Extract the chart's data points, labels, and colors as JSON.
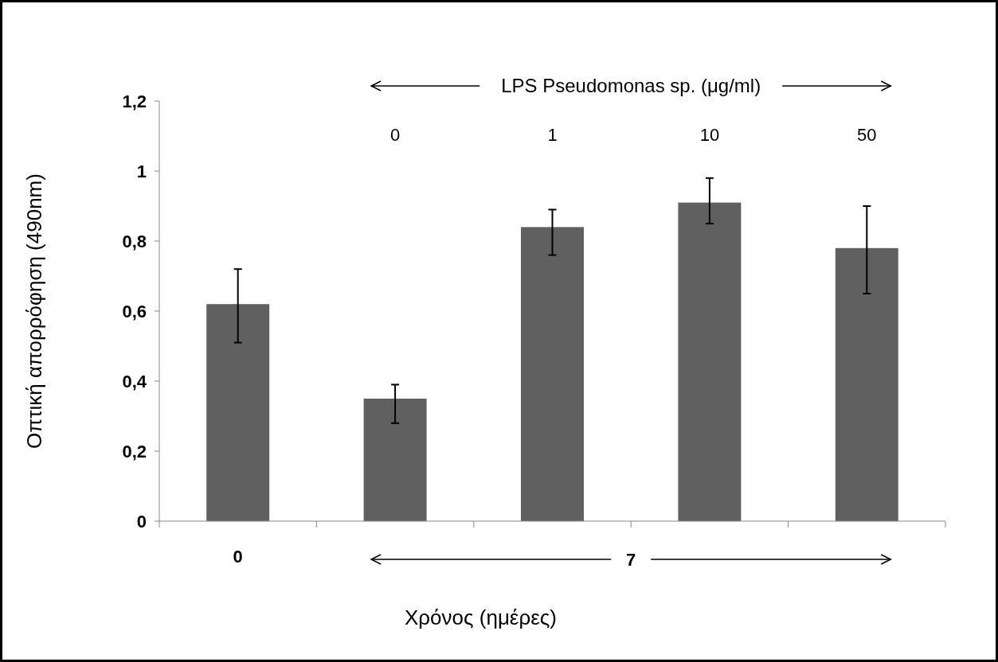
{
  "chart_data": {
    "type": "bar",
    "xlabel": "Χρόνος (ημέρες)",
    "ylabel": "Οπτική απορρόφηση (490nm)",
    "categories": [
      "0",
      null,
      null,
      null,
      null
    ],
    "values": [
      0.62,
      0.35,
      0.84,
      0.91,
      0.78
    ],
    "errors": [
      [
        0.51,
        0.72
      ],
      [
        0.28,
        0.39
      ],
      [
        0.76,
        0.89
      ],
      [
        0.85,
        0.98
      ],
      [
        0.65,
        0.9
      ]
    ],
    "color": "#606060",
    "ylim": [
      0,
      1.2
    ],
    "yticks": [
      0,
      {
        "value": 0.2,
        "label": "0,2"
      },
      {
        "value": 0.4,
        "label": "0,4"
      },
      {
        "value": 0.6,
        "label": "0,6"
      },
      {
        "value": 0.8,
        "label": "0,8"
      },
      1,
      {
        "value": 1.2,
        "label": "1,2"
      }
    ],
    "grid": false,
    "annotations": [
      "LPS Pseudomonas sp. (μg/ml)",
      "0",
      "1",
      "10",
      "50",
      "7"
    ]
  }
}
